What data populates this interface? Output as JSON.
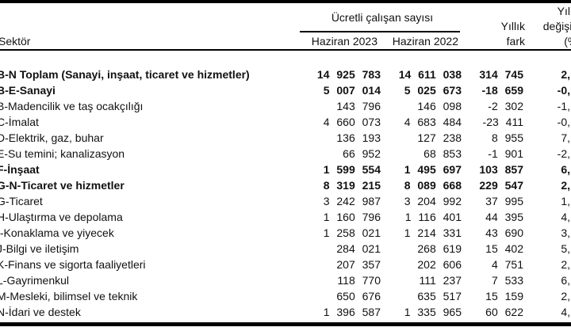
{
  "colors": {
    "background": "#ffffff",
    "text": "#111111",
    "rule": "#000000"
  },
  "table": {
    "sector_header": "Sektör",
    "group_header": "Ücretli çalışan sayısı",
    "col_jun2023": "Haziran 2023",
    "col_jun2022": "Haziran 2022",
    "col_annual_diff": {
      "line1": "Yıllık",
      "line2": "fark"
    },
    "col_annual_change": {
      "line1": "Yıllık",
      "line2": "değişim",
      "line3": "(%)"
    },
    "rows": [
      {
        "label": "B-N Toplam (Sanayi, inşaat, ticaret ve hizmetler)",
        "jun2023": "14 925 783",
        "jun2022": "14 611 038",
        "diff": "314 745",
        "pct": "2,",
        "bold": true
      },
      {
        "label": "B-E-Sanayi",
        "jun2023": "5 007 014",
        "jun2022": "5 025 673",
        "diff": "-18 659",
        "pct": "-0,",
        "bold": true
      },
      {
        "label": "B-Madencilik ve taş ocakçılığı",
        "jun2023": "143 796",
        "jun2022": "146 098",
        "diff": "-2 302",
        "pct": "-1,",
        "bold": false
      },
      {
        "label": "C-İmalat",
        "jun2023": "4 660 073",
        "jun2022": "4 683 484",
        "diff": "-23 411",
        "pct": "-0,",
        "bold": false
      },
      {
        "label": "D-Elektrik, gaz, buhar",
        "jun2023": "136 193",
        "jun2022": "127 238",
        "diff": "8 955",
        "pct": "7,",
        "bold": false
      },
      {
        "label": "E-Su temini; kanalizasyon",
        "jun2023": "66 952",
        "jun2022": "68 853",
        "diff": "-1 901",
        "pct": "-2,",
        "bold": false
      },
      {
        "label": "F-İnşaat",
        "jun2023": "1 599 554",
        "jun2022": "1 495 697",
        "diff": "103 857",
        "pct": "6,",
        "bold": true
      },
      {
        "label": "G-N-Ticaret ve hizmetler",
        "jun2023": "8 319 215",
        "jun2022": "8 089 668",
        "diff": "229 547",
        "pct": "2,",
        "bold": true
      },
      {
        "label": "G-Ticaret",
        "jun2023": "3 242 987",
        "jun2022": "3 204 992",
        "diff": "37 995",
        "pct": "1,",
        "bold": false
      },
      {
        "label": "H-Ulaştırma ve depolama",
        "jun2023": "1 160 796",
        "jun2022": "1 116 401",
        "diff": "44 395",
        "pct": "4,",
        "bold": false
      },
      {
        "label": "I-Konaklama ve yiyecek",
        "jun2023": "1 258 021",
        "jun2022": "1 214 331",
        "diff": "43 690",
        "pct": "3,",
        "bold": false
      },
      {
        "label": "J-Bilgi ve iletişim",
        "jun2023": "284 021",
        "jun2022": "268 619",
        "diff": "15 402",
        "pct": "5,",
        "bold": false
      },
      {
        "label": "K-Finans ve sigorta faaliyetleri",
        "jun2023": "207 357",
        "jun2022": "202 606",
        "diff": "4 751",
        "pct": "2,",
        "bold": false
      },
      {
        "label": "L-Gayrimenkul",
        "jun2023": "118 770",
        "jun2022": "111 237",
        "diff": "7 533",
        "pct": "6,",
        "bold": false
      },
      {
        "label": "M-Mesleki, bilimsel ve teknik",
        "jun2023": "650 676",
        "jun2022": "635 517",
        "diff": "15 159",
        "pct": "2,",
        "bold": false
      },
      {
        "label": "N-İdari ve destek",
        "jun2023": "1 396 587",
        "jun2022": "1 335 965",
        "diff": "60 622",
        "pct": "4,",
        "bold": false
      }
    ]
  }
}
